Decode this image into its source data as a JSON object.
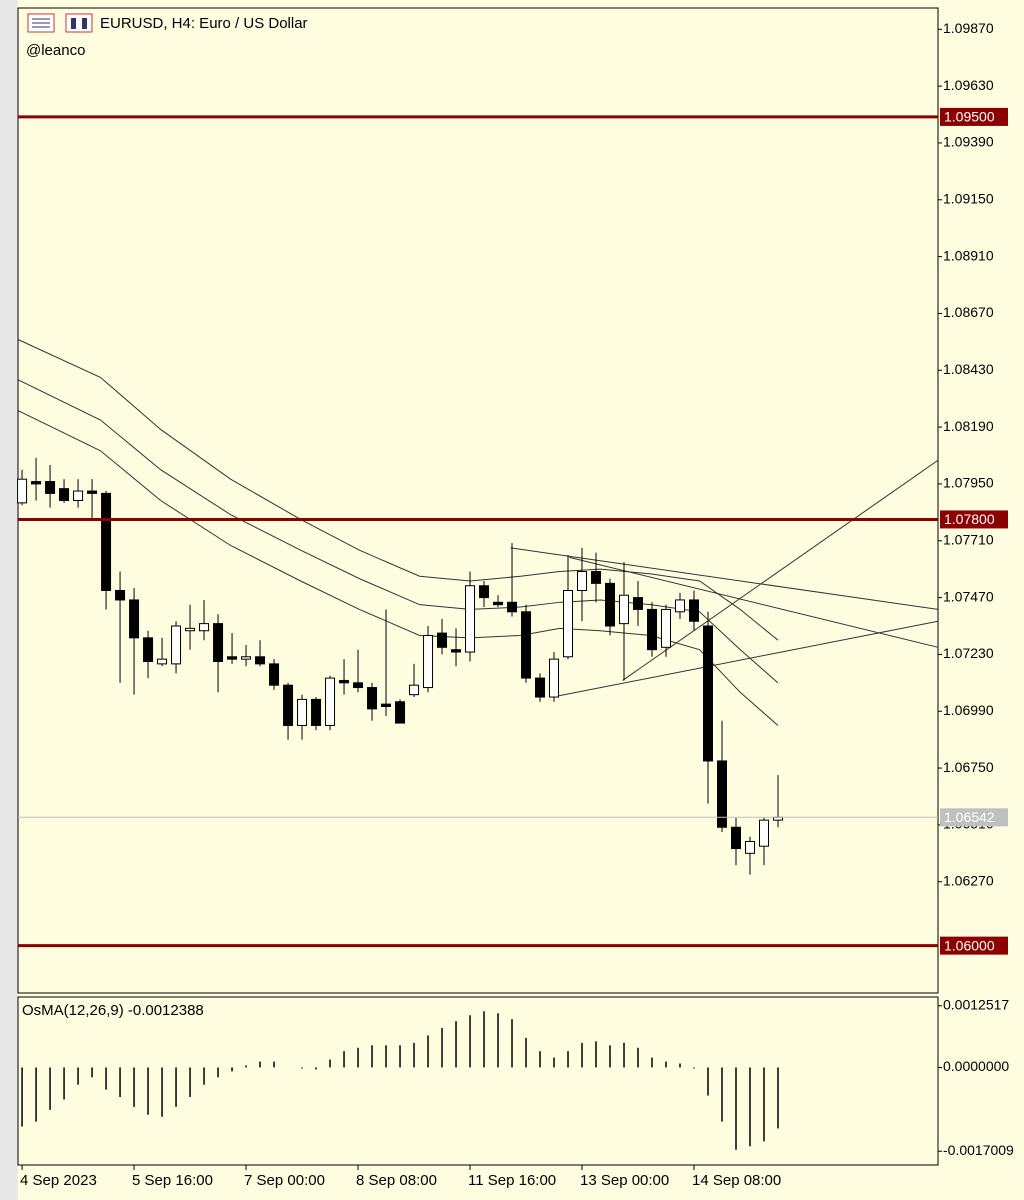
{
  "chart_data": [
    {
      "type": "candlestick",
      "title": "EURUSD, H4:  Euro / US Dollar",
      "subtitle": "@leanco",
      "bull_color": "#ffffff",
      "bear_color": "#000000",
      "xlim": [
        -0.29,
        65.43
      ],
      "ylim": [
        1.058,
        1.0996
      ],
      "yticks": [
        {
          "value": 1.0987,
          "label": "1.09870"
        },
        {
          "value": 1.0963,
          "label": "1.09630"
        },
        {
          "value": 1.0939,
          "label": "1.09390"
        },
        {
          "value": 1.0915,
          "label": "1.09150"
        },
        {
          "value": 1.0891,
          "label": "1.08910"
        },
        {
          "value": 1.0867,
          "label": "1.08670"
        },
        {
          "value": 1.0843,
          "label": "1.08430"
        },
        {
          "value": 1.0819,
          "label": "1.08190"
        },
        {
          "value": 1.0795,
          "label": "1.07950"
        },
        {
          "value": 1.0771,
          "label": "1.07710"
        },
        {
          "value": 1.0747,
          "label": "1.07470"
        },
        {
          "value": 1.0723,
          "label": "1.07230"
        },
        {
          "value": 1.0699,
          "label": "1.06990"
        },
        {
          "value": 1.0675,
          "label": "1.06750"
        },
        {
          "value": 1.0651,
          "label": "1.06510"
        },
        {
          "value": 1.0627,
          "label": "1.06270"
        }
      ],
      "candles": {
        "open": [
          1.0787,
          1.0796,
          1.0796,
          1.0793,
          1.0788,
          1.0792,
          1.0791,
          1.075,
          1.0746,
          1.073,
          1.0719,
          1.0719,
          1.0733,
          1.0733,
          1.0736,
          1.0722,
          1.0721,
          1.0722,
          1.0719,
          1.071,
          1.0693,
          1.0704,
          1.0693,
          1.0712,
          1.0711,
          1.0709,
          1.0702,
          1.0703,
          1.0706,
          1.0709,
          1.0732,
          1.0725,
          1.0724,
          1.0752,
          1.0745,
          1.0745,
          1.0741,
          1.0713,
          1.0705,
          1.0722,
          1.075,
          1.0758,
          1.0753,
          1.0736,
          1.0747,
          1.0742,
          1.0726,
          1.0741,
          1.0746,
          1.0735,
          1.0678,
          1.065,
          1.0639,
          1.0642,
          1.0653
        ],
        "high": [
          1.0801,
          1.0806,
          1.0803,
          1.0797,
          1.0797,
          1.0797,
          1.0792,
          1.0758,
          1.0751,
          1.0733,
          1.073,
          1.0737,
          1.0744,
          1.0746,
          1.074,
          1.0732,
          1.0727,
          1.0729,
          1.0721,
          1.0711,
          1.0706,
          1.0705,
          1.0714,
          1.0721,
          1.0725,
          1.0711,
          1.0742,
          1.0704,
          1.0719,
          1.0735,
          1.0738,
          1.0734,
          1.0758,
          1.0754,
          1.0748,
          1.077,
          1.0744,
          1.0715,
          1.0724,
          1.0765,
          1.0768,
          1.0766,
          1.0755,
          1.0762,
          1.0754,
          1.0745,
          1.0744,
          1.0749,
          1.075,
          1.0741,
          1.0695,
          1.0654,
          1.0646,
          1.0654,
          1.0672
        ],
        "low": [
          1.0786,
          1.0788,
          1.0785,
          1.0787,
          1.0785,
          1.078,
          1.0742,
          1.0711,
          1.0706,
          1.0713,
          1.0718,
          1.0715,
          1.0725,
          1.0729,
          1.0707,
          1.0719,
          1.0718,
          1.0718,
          1.0708,
          1.0687,
          1.0687,
          1.0691,
          1.0691,
          1.0706,
          1.0707,
          1.0695,
          1.0697,
          1.0694,
          1.0705,
          1.0707,
          1.0723,
          1.0718,
          1.072,
          1.0743,
          1.0743,
          1.0739,
          1.0711,
          1.0703,
          1.0703,
          1.0721,
          1.0737,
          1.0745,
          1.0731,
          1.0712,
          1.0735,
          1.0722,
          1.0722,
          1.0738,
          1.0733,
          1.066,
          1.0648,
          1.0634,
          1.063,
          1.0634,
          1.065
        ],
        "close": [
          1.0797,
          1.0795,
          1.0791,
          1.0788,
          1.0792,
          1.0791,
          1.075,
          1.0746,
          1.073,
          1.072,
          1.0721,
          1.0735,
          1.0734,
          1.0736,
          1.072,
          1.0721,
          1.0722,
          1.0719,
          1.071,
          1.0693,
          1.0704,
          1.0693,
          1.0713,
          1.0711,
          1.0709,
          1.07,
          1.0701,
          1.0694,
          1.071,
          1.0731,
          1.0726,
          1.0724,
          1.0752,
          1.0747,
          1.0744,
          1.0741,
          1.0713,
          1.0705,
          1.0721,
          1.075,
          1.0758,
          1.0753,
          1.0735,
          1.0748,
          1.0742,
          1.0725,
          1.0742,
          1.0746,
          1.0737,
          1.0678,
          1.065,
          1.0641,
          1.0644,
          1.0653,
          1.06542
        ]
      },
      "series": [
        {
          "color": "#333333",
          "x": [
            -0.29,
            5.6,
            9.9,
            14.9,
            19.9,
            24.1,
            28.4,
            32,
            35.6,
            38.4,
            41.3,
            44.9,
            48.4,
            51.3,
            54
          ],
          "values": [
            1.0856,
            1.084,
            1.0818,
            1.0797,
            1.078,
            1.0767,
            1.0756,
            1.0754,
            1.0756,
            1.0758,
            1.0759,
            1.0757,
            1.0754,
            1.0742,
            1.0729
          ]
        },
        {
          "color": "#333333",
          "x": [
            -0.29,
            5.6,
            9.9,
            14.9,
            19.9,
            24.1,
            28.4,
            32,
            35.6,
            38.4,
            41.3,
            44.9,
            48.4,
            51.3,
            54
          ],
          "values": [
            1.0839,
            1.0822,
            1.0801,
            1.0782,
            1.0767,
            1.0755,
            1.0744,
            1.0742,
            1.0743,
            1.0745,
            1.0746,
            1.0744,
            1.0741,
            1.0725,
            1.0711
          ]
        },
        {
          "color": "#333333",
          "x": [
            -0.29,
            5.6,
            9.9,
            14.9,
            19.9,
            24.1,
            28.4,
            32,
            35.6,
            38.4,
            41.3,
            44.9,
            48.4,
            51.3,
            54
          ],
          "values": [
            1.0826,
            1.0809,
            1.0788,
            1.0769,
            1.0754,
            1.0742,
            1.0731,
            1.073,
            1.0731,
            1.0734,
            1.0733,
            1.0731,
            1.0725,
            1.0707,
            1.0693
          ]
        },
        {
          "color": "#333333",
          "x": [
            34.9,
            65.43
          ],
          "values": [
            1.0768,
            1.0742
          ]
        },
        {
          "color": "#333333",
          "x": [
            39.1,
            65.43
          ],
          "values": [
            1.0764,
            1.0726
          ]
        },
        {
          "color": "#333333",
          "x": [
            37.9,
            65.43
          ],
          "values": [
            1.0705,
            1.0737
          ]
        },
        {
          "color": "#333333",
          "x": [
            42.9,
            65.43
          ],
          "values": [
            1.0712,
            1.0805
          ]
        }
      ],
      "hlines": [
        {
          "value": 1.095,
          "label": "1.09500",
          "color": "#8b0000"
        },
        {
          "value": 1.078,
          "label": "1.07800",
          "color": "#8b0000"
        },
        {
          "value": 1.06,
          "label": "1.06000",
          "color": "#8b0000"
        }
      ],
      "current": {
        "value": 1.06542,
        "label": "1.06542",
        "color": "#c0c0c0"
      }
    },
    {
      "type": "bar",
      "title": "OsMA(12,26,9) -0.0012388",
      "color": "#000000",
      "xlim": [
        -0.29,
        65.43
      ],
      "ylim": [
        -0.00198,
        0.00143
      ],
      "yticks": [
        {
          "value": 0.0012517,
          "label": "0.0012517"
        },
        {
          "value": 0,
          "label": "0.0000000"
        },
        {
          "value": -0.0017009,
          "label": "-0.0017009"
        }
      ],
      "xticks": [
        {
          "value": 0,
          "label": "4 Sep 2023"
        },
        {
          "value": 8,
          "label": "5 Sep 16:00"
        },
        {
          "value": 16,
          "label": "7 Sep 00:00"
        },
        {
          "value": 24,
          "label": "8 Sep 08:00"
        },
        {
          "value": 32,
          "label": "11 Sep 16:00"
        },
        {
          "value": 40,
          "label": "13 Sep 00:00"
        },
        {
          "value": 48,
          "label": "14 Sep 08:00"
        }
      ],
      "values": [
        -0.0012,
        -0.0011,
        -0.00086,
        -0.00065,
        -0.00035,
        -0.0002,
        -0.00045,
        -0.0006,
        -0.0008,
        -0.00096,
        -0.001,
        -0.0008,
        -0.0006,
        -0.00035,
        -0.0002,
        -8e-05,
        4e-05,
        0.00012,
        0.00012,
        0,
        -2e-05,
        -4e-05,
        0.00016,
        0.00033,
        0.0004,
        0.00045,
        0.00045,
        0.00045,
        0.0005,
        0.00065,
        0.0008,
        0.00094,
        0.00106,
        0.00114,
        0.0011,
        0.00098,
        0.0006,
        0.00033,
        0.0002,
        0.00033,
        0.0005,
        0.00053,
        0.00045,
        0.0005,
        0.0004,
        0.0002,
        0.00012,
        8e-05,
        -2e-05,
        -0.00057,
        -0.0011,
        -0.00167,
        -0.0016,
        -0.0015,
        -0.0012388
      ]
    }
  ]
}
